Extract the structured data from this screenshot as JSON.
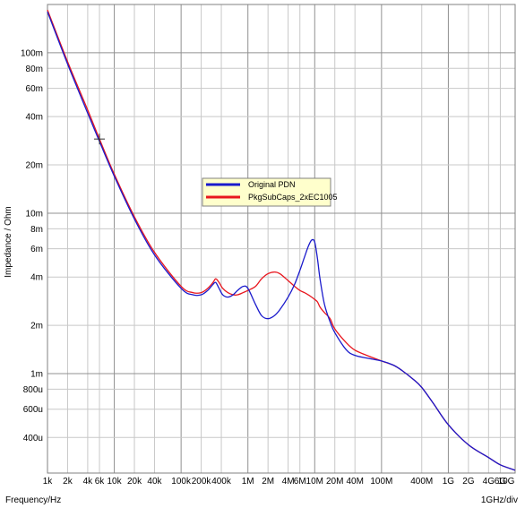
{
  "chart_data": {
    "type": "line",
    "xscale": "log",
    "yscale": "log",
    "xlim": [
      1000,
      10000000000
    ],
    "ylim": [
      0.00024,
      0.2
    ],
    "xlabel": "Frequency/Hz",
    "ylabel": "Impedance / Ohm",
    "x_scale_note": "1GHz/div",
    "grid": true,
    "legend_position": "center",
    "x_ticks": [
      {
        "value": 1000,
        "label": "1k"
      },
      {
        "value": 2000,
        "label": "2k"
      },
      {
        "value": 4000,
        "label": "4k"
      },
      {
        "value": 6000,
        "label": "6k"
      },
      {
        "value": 10000,
        "label": "10k"
      },
      {
        "value": 20000,
        "label": "20k"
      },
      {
        "value": 40000,
        "label": "40k"
      },
      {
        "value": 100000,
        "label": "100k"
      },
      {
        "value": 200000,
        "label": "200k"
      },
      {
        "value": 400000,
        "label": "400k"
      },
      {
        "value": 1000000,
        "label": "1M"
      },
      {
        "value": 2000000,
        "label": "2M"
      },
      {
        "value": 4000000,
        "label": "4M"
      },
      {
        "value": 6000000,
        "label": "6M"
      },
      {
        "value": 10000000,
        "label": "10M"
      },
      {
        "value": 20000000,
        "label": "20M"
      },
      {
        "value": 40000000,
        "label": "40M"
      },
      {
        "value": 100000000,
        "label": "100M"
      },
      {
        "value": 400000000,
        "label": "400M"
      },
      {
        "value": 1000000000,
        "label": "1G"
      },
      {
        "value": 2000000000,
        "label": "2G"
      },
      {
        "value": 4000000000,
        "label": "4G"
      },
      {
        "value": 6000000000,
        "label": "6G"
      },
      {
        "value": 10000000000,
        "label": "10G"
      }
    ],
    "y_ticks": [
      {
        "value": 0.1,
        "label": "100m"
      },
      {
        "value": 0.08,
        "label": "80m"
      },
      {
        "value": 0.06,
        "label": "60m"
      },
      {
        "value": 0.04,
        "label": "40m"
      },
      {
        "value": 0.02,
        "label": "20m"
      },
      {
        "value": 0.01,
        "label": "10m"
      },
      {
        "value": 0.008,
        "label": "8m"
      },
      {
        "value": 0.006,
        "label": "6m"
      },
      {
        "value": 0.004,
        "label": "4m"
      },
      {
        "value": 0.002,
        "label": "2m"
      },
      {
        "value": 0.001,
        "label": "1m"
      },
      {
        "value": 0.0008,
        "label": "800u"
      },
      {
        "value": 0.0006,
        "label": "600u"
      },
      {
        "value": 0.0004,
        "label": "400u"
      }
    ],
    "x_major_gridlines": [
      1000,
      10000,
      100000,
      1000000,
      10000000,
      100000000,
      1000000000,
      10000000000
    ],
    "y_major_gridlines": [
      0.1,
      0.01,
      0.001
    ],
    "series": [
      {
        "name": "Original PDN",
        "color": "#1a1acc",
        "x": [
          1000,
          2000,
          4000,
          6000,
          10000,
          20000,
          40000,
          100000,
          150000,
          200000,
          250000,
          300000,
          330000,
          370000,
          420000,
          500000,
          600000,
          700000,
          850000,
          1000000,
          1300000,
          1600000,
          2000000,
          2500000,
          3000000,
          4000000,
          5000000,
          6000000,
          7000000,
          8000000,
          9000000,
          10000000,
          11000000,
          12000000,
          14000000,
          17000000,
          20000000,
          30000000,
          40000000,
          60000000,
          100000000,
          150000000,
          200000000,
          300000000,
          400000000,
          600000000,
          1000000000,
          2000000000,
          4000000000,
          6000000000,
          10000000000
        ],
        "y": [
          0.18,
          0.085,
          0.042,
          0.028,
          0.017,
          0.0092,
          0.0055,
          0.0034,
          0.0031,
          0.0031,
          0.0033,
          0.0036,
          0.0037,
          0.0034,
          0.0031,
          0.003,
          0.0031,
          0.0033,
          0.0035,
          0.0034,
          0.0027,
          0.0023,
          0.0022,
          0.0023,
          0.0025,
          0.003,
          0.0036,
          0.0044,
          0.0053,
          0.0062,
          0.0068,
          0.0066,
          0.0052,
          0.0039,
          0.0027,
          0.0021,
          0.0018,
          0.0014,
          0.0013,
          0.00125,
          0.0012,
          0.00113,
          0.00105,
          0.00092,
          0.00082,
          0.00065,
          0.00048,
          0.00036,
          0.0003,
          0.00027,
          0.00025
        ]
      },
      {
        "name": "PkgSubCaps_2xEC1005",
        "color": "#e8161e",
        "x": [
          1000,
          2000,
          4000,
          6000,
          10000,
          20000,
          40000,
          100000,
          150000,
          200000,
          250000,
          300000,
          330000,
          370000,
          420000,
          500000,
          600000,
          700000,
          850000,
          1000000,
          1300000,
          1600000,
          2000000,
          2500000,
          3000000,
          4000000,
          5000000,
          6000000,
          7000000,
          8000000,
          9000000,
          10000000,
          11000000,
          12000000,
          14000000,
          17000000,
          20000000,
          30000000,
          40000000,
          60000000,
          100000000,
          150000000,
          200000000,
          300000000,
          400000000,
          600000000,
          1000000000,
          2000000000,
          4000000000,
          6000000000,
          10000000000
        ],
        "y": [
          0.185,
          0.088,
          0.044,
          0.029,
          0.0175,
          0.0095,
          0.0057,
          0.0035,
          0.0032,
          0.0032,
          0.0034,
          0.0037,
          0.0039,
          0.0037,
          0.0034,
          0.0032,
          0.0031,
          0.0031,
          0.0032,
          0.0033,
          0.0035,
          0.0039,
          0.0042,
          0.0043,
          0.0042,
          0.0038,
          0.0035,
          0.0033,
          0.0032,
          0.0031,
          0.003,
          0.0029,
          0.0028,
          0.0026,
          0.0024,
          0.0022,
          0.0019,
          0.00155,
          0.0014,
          0.0013,
          0.0012,
          0.00113,
          0.00105,
          0.00092,
          0.00082,
          0.00065,
          0.00048,
          0.00036,
          0.0003,
          0.00027,
          0.00025
        ]
      }
    ],
    "marker": {
      "x": 6000,
      "y": 0.029,
      "symbol": "+"
    }
  }
}
